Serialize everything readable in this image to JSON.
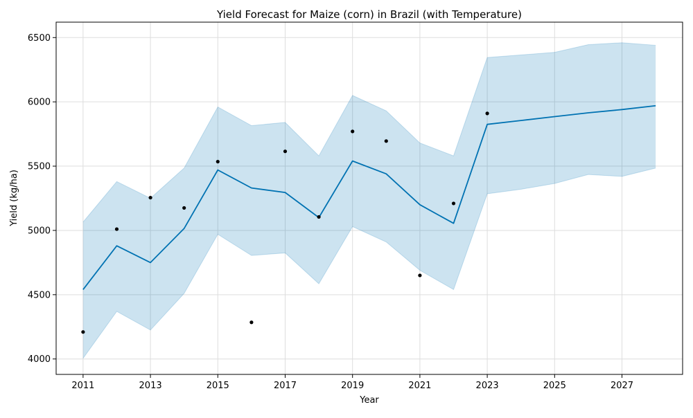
{
  "chart_data": {
    "type": "line",
    "title": "Yield Forecast for Maize (corn) in Brazil (with Temperature)",
    "xlabel": "Year",
    "ylabel": "Yield (kg/ha)",
    "xlim": [
      2010.2,
      2028.8
    ],
    "ylim": [
      3880,
      6620
    ],
    "x_ticks": [
      2011,
      2013,
      2015,
      2017,
      2019,
      2021,
      2023,
      2025,
      2027
    ],
    "y_ticks": [
      4000,
      4500,
      5000,
      5500,
      6000,
      6500
    ],
    "grid": true,
    "colors": {
      "forecast_line": "#0072b2",
      "interval_fill": "#0072b2",
      "observed_points": "#000000",
      "grid": "#dddddd"
    },
    "series": [
      {
        "role": "forecast",
        "x": [
          2011,
          2012,
          2013,
          2014,
          2015,
          2016,
          2017,
          2018,
          2019,
          2020,
          2021,
          2022,
          2023,
          2024,
          2025,
          2026,
          2027,
          2028
        ],
        "values": [
          4540,
          4880,
          4750,
          5015,
          5470,
          5330,
          5295,
          5100,
          5540,
          5440,
          5200,
          5055,
          5825,
          5855,
          5885,
          5915,
          5940,
          5970
        ]
      },
      {
        "role": "interval_upper",
        "x": [
          2011,
          2012,
          2013,
          2014,
          2015,
          2016,
          2017,
          2018,
          2019,
          2020,
          2021,
          2022,
          2023,
          2024,
          2025,
          2026,
          2027,
          2028
        ],
        "values": [
          5065,
          5380,
          5250,
          5485,
          5960,
          5815,
          5840,
          5580,
          6050,
          5930,
          5680,
          5580,
          6345,
          6365,
          6385,
          6445,
          6460,
          6440
        ]
      },
      {
        "role": "interval_lower",
        "x": [
          2011,
          2012,
          2013,
          2014,
          2015,
          2016,
          2017,
          2018,
          2019,
          2020,
          2021,
          2022,
          2023,
          2024,
          2025,
          2026,
          2027,
          2028
        ],
        "values": [
          4005,
          4370,
          4225,
          4510,
          4970,
          4805,
          4825,
          4585,
          5030,
          4910,
          4690,
          4540,
          5285,
          5320,
          5365,
          5435,
          5420,
          5485
        ]
      },
      {
        "role": "observed",
        "x": [
          2011,
          2012,
          2013,
          2014,
          2015,
          2016,
          2017,
          2018,
          2019,
          2020,
          2021,
          2022,
          2023
        ],
        "values": [
          4210,
          5010,
          5255,
          5175,
          5535,
          4285,
          5615,
          5105,
          5770,
          5695,
          4650,
          5210,
          5910
        ]
      }
    ]
  }
}
